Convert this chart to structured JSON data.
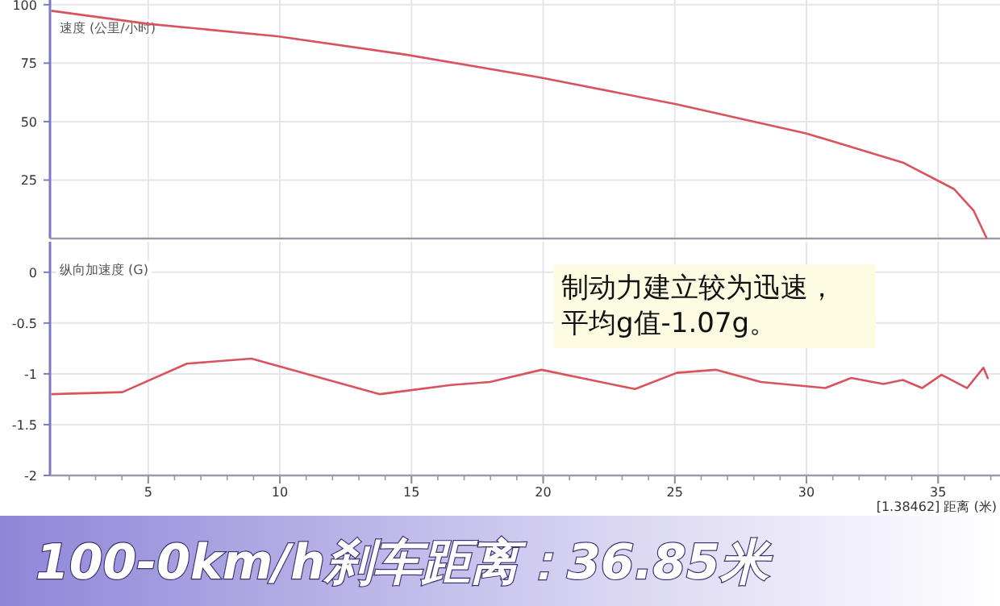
{
  "chart_data": [
    {
      "type": "line",
      "ylabel": "速度 (公里/小时)",
      "xlim": [
        1.27,
        37.35
      ],
      "xticks": [
        5,
        10,
        15,
        20,
        25,
        30,
        35
      ],
      "ylim": [
        0,
        102
      ],
      "yticks": [
        25,
        50,
        75,
        100
      ],
      "tick_labels": "y",
      "grid": true,
      "series": [
        {
          "color": "#d9535d",
          "x": [
            1.32,
            5.0,
            9.9,
            14.8,
            19.9,
            25.08,
            29.98,
            33.66,
            35.6,
            36.35,
            36.85
          ],
          "values": [
            97.4,
            91.8,
            86.5,
            78.6,
            68.8,
            57.4,
            45,
            32.5,
            21.2,
            11.9,
            0
          ]
        }
      ]
    },
    {
      "type": "line",
      "ylabel": "纵向加速度 (G)",
      "xlabel": "[1.38462] 距离 (米)",
      "xlim": [
        1.27,
        37.35
      ],
      "xticks": [
        5,
        10,
        15,
        20,
        25,
        30,
        35
      ],
      "ylim": [
        -2,
        0.3
      ],
      "yticks": [
        0,
        -0.5,
        -1,
        -1.5,
        -2
      ],
      "grid": true,
      "annotations": [
        "制动力建立较为迅速，平均g值-1.07g。",
        "100-0km/h刹车距离：36.85米"
      ],
      "series": [
        {
          "color": "#d9535d",
          "x": [
            1.32,
            4.02,
            6.47,
            8.92,
            13.8,
            16.5,
            17.98,
            19.94,
            23.49,
            25.08,
            26.55,
            28.27,
            30.72,
            31.7,
            32.92,
            33.66,
            34.39,
            35.13,
            36.1,
            36.72,
            36.9
          ],
          "values": [
            -1.2,
            -1.18,
            -0.9,
            -0.85,
            -1.2,
            -1.11,
            -1.08,
            -0.96,
            -1.15,
            -0.99,
            -0.96,
            -1.08,
            -1.14,
            -1.04,
            -1.1,
            -1.06,
            -1.14,
            -1.01,
            -1.14,
            -0.94,
            -1.05
          ]
        }
      ]
    }
  ]
}
